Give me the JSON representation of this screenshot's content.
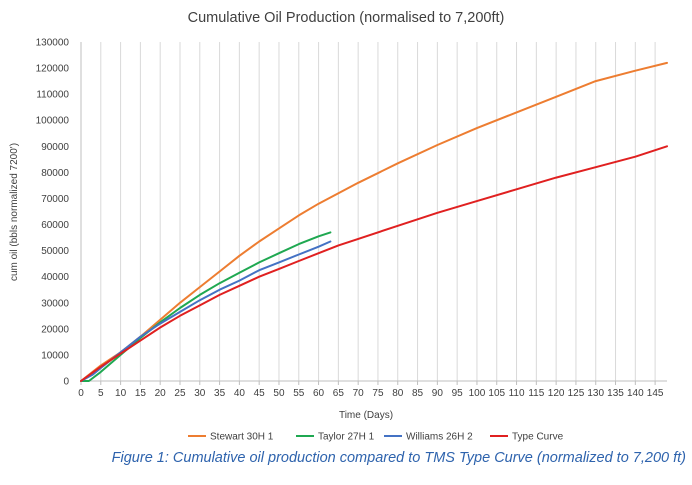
{
  "chart_data": {
    "type": "line",
    "title": "Cumulative Oil Production (normalised to 7,200ft)",
    "xlabel": "Time (Days)",
    "ylabel": "cum oil (bbls normalized 7200')",
    "xlim": [
      0,
      148
    ],
    "ylim": [
      0,
      130000
    ],
    "x_ticks": [
      0,
      5,
      10,
      15,
      20,
      25,
      30,
      35,
      40,
      45,
      50,
      55,
      60,
      65,
      70,
      75,
      80,
      85,
      90,
      95,
      100,
      105,
      110,
      115,
      120,
      125,
      130,
      135,
      140,
      145
    ],
    "y_ticks": [
      0,
      10000,
      20000,
      30000,
      40000,
      50000,
      60000,
      70000,
      80000,
      90000,
      100000,
      110000,
      120000,
      130000
    ],
    "grid": "vertical",
    "legend_position": "bottom",
    "series": [
      {
        "name": "Stewart 30H 1",
        "color": "#ed7d31",
        "x": [
          0,
          5,
          10,
          15,
          20,
          25,
          30,
          35,
          40,
          45,
          50,
          55,
          60,
          65,
          70,
          80,
          90,
          100,
          110,
          120,
          130,
          140,
          148
        ],
        "values": [
          0,
          6000,
          11000,
          17000,
          23500,
          30000,
          36000,
          42000,
          48000,
          53500,
          58500,
          63500,
          68000,
          72000,
          76000,
          83500,
          90500,
          97000,
          103000,
          109000,
          115000,
          119000,
          122000
        ]
      },
      {
        "name": "Taylor 27H 1",
        "color": "#1fa851",
        "x": [
          0,
          2,
          5,
          10,
          15,
          20,
          25,
          30,
          35,
          40,
          45,
          50,
          55,
          60,
          63
        ],
        "values": [
          0,
          0,
          3500,
          10000,
          16500,
          22500,
          28000,
          33000,
          37500,
          41500,
          45500,
          49000,
          52500,
          55500,
          57000
        ]
      },
      {
        "name": "Williams 26H 2",
        "color": "#4472c4",
        "x": [
          0,
          3,
          5,
          10,
          15,
          20,
          25,
          30,
          35,
          40,
          45,
          50,
          55,
          60,
          63
        ],
        "values": [
          0,
          2500,
          5000,
          11000,
          17000,
          22000,
          26500,
          31000,
          35000,
          38500,
          42500,
          45500,
          48500,
          51500,
          53500
        ]
      },
      {
        "name": "Type Curve",
        "color": "#e02020",
        "x": [
          0,
          5,
          10,
          15,
          20,
          25,
          30,
          35,
          40,
          45,
          50,
          55,
          60,
          65,
          70,
          80,
          90,
          100,
          110,
          120,
          130,
          140,
          148
        ],
        "values": [
          0,
          5500,
          10500,
          15500,
          20500,
          25000,
          29000,
          33000,
          36500,
          40000,
          43000,
          46000,
          49000,
          52000,
          54500,
          59500,
          64500,
          69000,
          73500,
          78000,
          82000,
          86000,
          90000
        ]
      }
    ],
    "caption": "Figure 1: Cumulative oil production compared to TMS Type Curve (normalized to 7,200 ft)"
  }
}
